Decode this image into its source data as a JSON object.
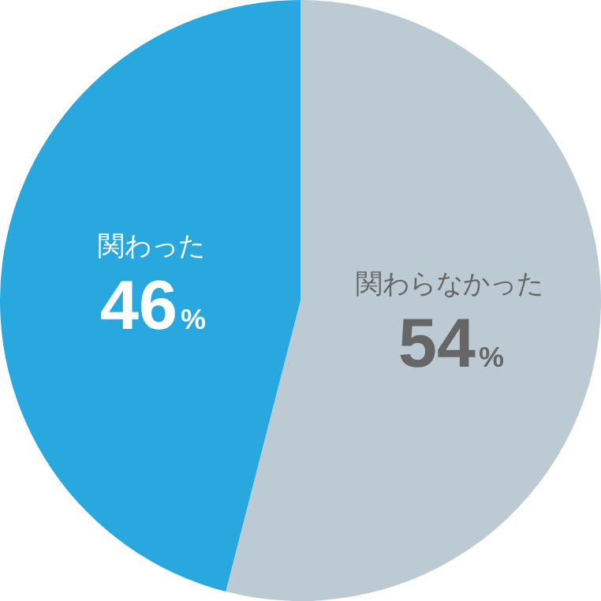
{
  "chart_data": {
    "type": "pie",
    "categories": [
      "関わらなかった",
      "関わった"
    ],
    "values": [
      54,
      46
    ],
    "colors": [
      "#bccad3",
      "#29a8e0"
    ],
    "value_labels": [
      "54%",
      "46%"
    ],
    "legend": false
  }
}
